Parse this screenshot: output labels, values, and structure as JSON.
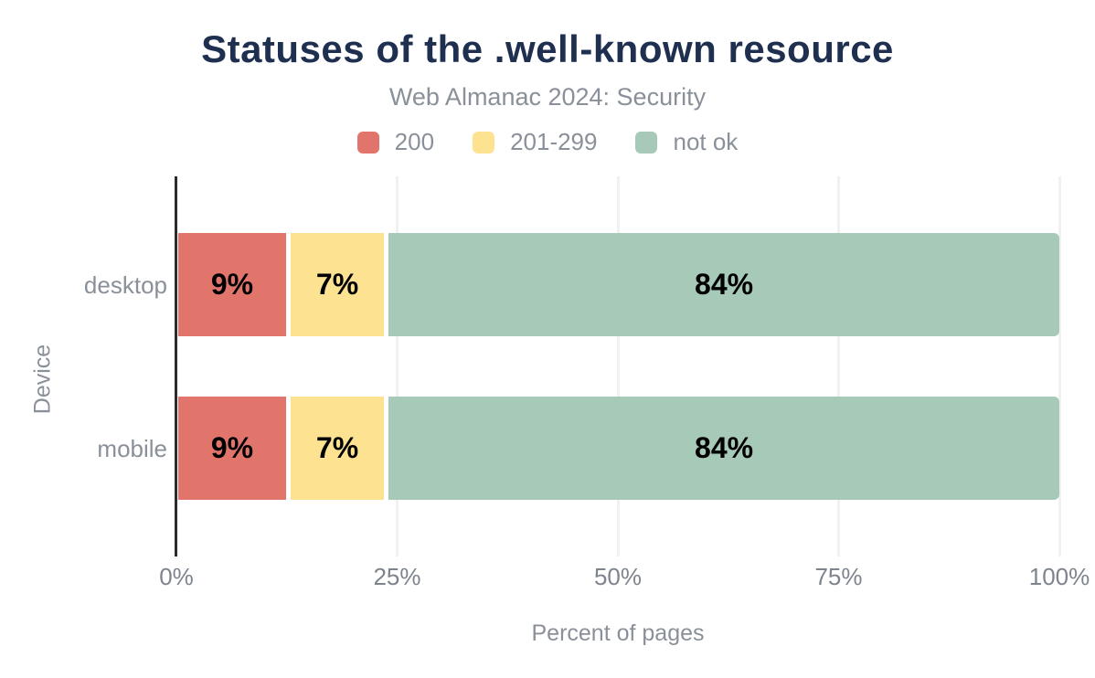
{
  "title": "Statuses of the .well-known resource",
  "subtitle": "Web Almanac 2024: Security",
  "colors": {
    "title_navy": "#1e2f4f",
    "text_gray": "#8a9099",
    "tick_gray": "#7e848d",
    "axis_line": "#2b2b2b",
    "gridline": "#f1f1f4",
    "series_200": "#e1756c",
    "series_201_299": "#fde292",
    "series_not_ok": "#a7c9b7"
  },
  "legend": {
    "items": [
      {
        "label": "200",
        "color": "#e1756c"
      },
      {
        "label": "201-299",
        "color": "#fde292"
      },
      {
        "label": "not ok",
        "color": "#a7c9b7"
      }
    ]
  },
  "chart_data": {
    "type": "bar",
    "orientation": "horizontal",
    "stacked": true,
    "title": "Statuses of the .well-known resource",
    "subtitle": "Web Almanac 2024: Security",
    "categories": [
      "desktop",
      "mobile"
    ],
    "series": [
      {
        "name": "200",
        "color": "#e1756c",
        "values": [
          9,
          9
        ]
      },
      {
        "name": "201-299",
        "color": "#fde292",
        "values": [
          7,
          7
        ]
      },
      {
        "name": "not ok",
        "color": "#a7c9b7",
        "values": [
          84,
          84
        ]
      }
    ],
    "value_labels": [
      [
        "9%",
        "7%",
        "84%"
      ],
      [
        "9%",
        "7%",
        "84%"
      ]
    ],
    "xlabel": "Percent of pages",
    "ylabel": "Device",
    "xlim": [
      0,
      100
    ],
    "xticks": [
      "0%",
      "25%",
      "50%",
      "75%",
      "100%"
    ],
    "grid": true,
    "legend_position": "top"
  }
}
